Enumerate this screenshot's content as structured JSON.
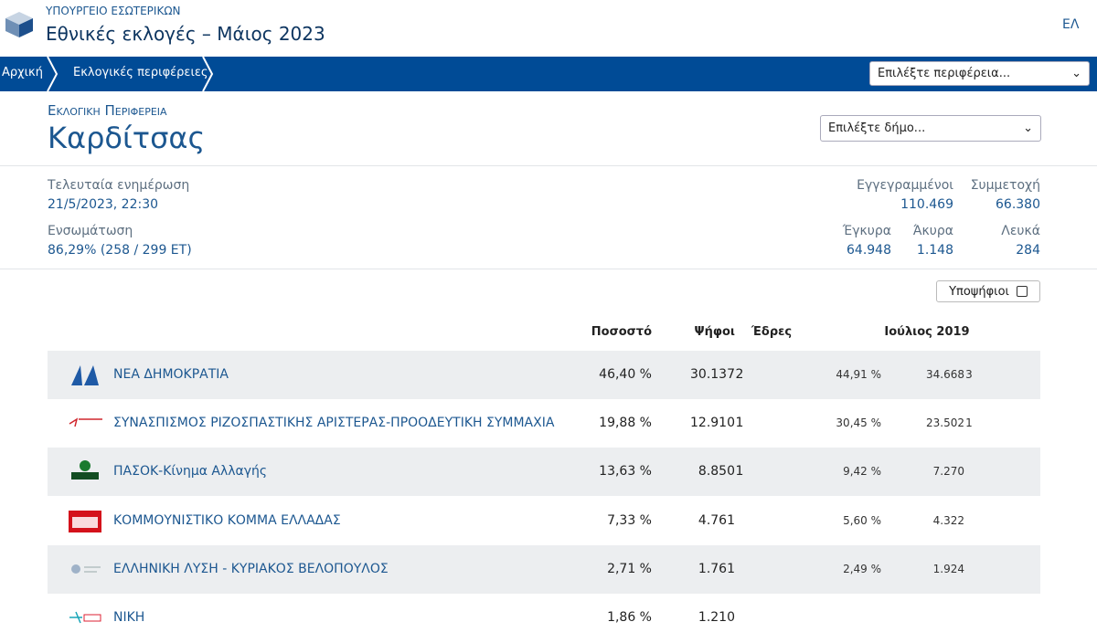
{
  "header": {
    "ministry": "ΥΠΟΥΡΓΕΙΟ ΕΣΩΤΕΡΙΚΩΝ",
    "title": "Εθνικές εκλογές – Μάιος 2023",
    "language": "ΕΛ"
  },
  "nav": {
    "breadcrumbs": [
      "Αρχική",
      "Εκλογικές περιφέρειες"
    ],
    "region_select": "Επιλέξτε περιφέρεια..."
  },
  "district": {
    "label": "Εκλογική Περιφέρεια",
    "name": "Καρδίτσας",
    "municipality_select": "Επιλέξτε δήμο..."
  },
  "stats": {
    "update": {
      "label": "Τελευταία ενημέρωση",
      "value": "21/5/2023, 22:30"
    },
    "integration": {
      "label": "Ενσωμάτωση",
      "value": "86,29% (258 / 299 ΕΤ)"
    },
    "registered": {
      "label": "Εγγεγραμμένοι",
      "value": "110.469"
    },
    "turnout": {
      "label": "Συμμετοχή",
      "value": "66.380"
    },
    "valid": {
      "label": "Έγκυρα",
      "value": "64.948"
    },
    "invalid": {
      "label": "Άκυρα",
      "value": "1.148"
    },
    "blank": {
      "label": "Λευκά",
      "value": "284"
    }
  },
  "candidates_toggle": "Υποψήφιοι",
  "table": {
    "columns": [
      "Ποσοστό",
      "Ψήφοι",
      "Έδρες",
      "Ιούλιος 2019"
    ],
    "rows": [
      [
        "ΝΕΑ ΔΗΜΟΚΡΑΤΙΑ",
        "46,40 %",
        "30.137",
        "2",
        "44,91 %",
        "34.668",
        "3"
      ],
      [
        "ΣΥΝΑΣΠΙΣΜΟΣ ΡΙΖΟΣΠΑΣΤΙΚΗΣ ΑΡΙΣΤΕΡΑΣ-ΠΡΟΟΔΕΥΤΙΚΗ ΣΥΜΜΑΧΙΑ",
        "19,88 %",
        "12.910",
        "1",
        "30,45 %",
        "23.502",
        "1"
      ],
      [
        "ΠΑΣΟΚ-Κίνημα Αλλαγής",
        "13,63 %",
        "8.850",
        "1",
        "9,42 %",
        "7.270",
        null
      ],
      [
        "ΚΟΜΜΟΥΝΙΣΤΙΚΟ ΚΟΜΜΑ ΕΛΛΑΔΑΣ",
        "7,33 %",
        "4.761",
        null,
        "5,60 %",
        "4.322",
        null
      ],
      [
        "ΕΛΛΗΝΙΚΗ ΛΥΣΗ - ΚΥΡΙΑΚΟΣ ΒΕΛΟΠΟΥΛΟΣ",
        "2,71 %",
        "1.761",
        null,
        "2,49 %",
        "1.924",
        null
      ],
      [
        "ΝΙΚΗ",
        "1,86 %",
        "1.210",
        null,
        null,
        null,
        null
      ]
    ]
  }
}
